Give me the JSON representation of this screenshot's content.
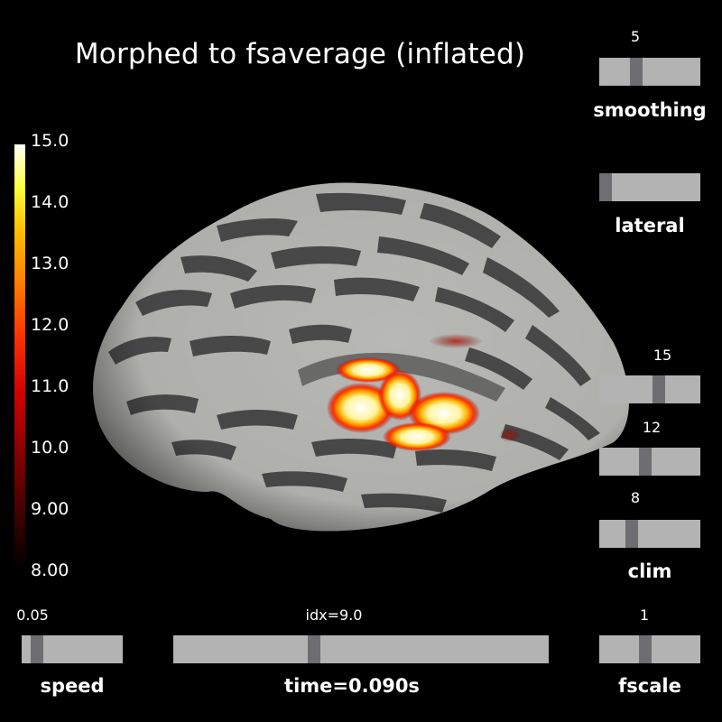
{
  "title": "Morphed to fsaverage (inflated)",
  "colorbar": {
    "ticks": [
      "15.0",
      "14.0",
      "13.0",
      "12.0",
      "11.0",
      "10.0",
      "9.00",
      "8.00"
    ],
    "min": 8.0,
    "max": 15.0
  },
  "sliders": {
    "smoothing": {
      "label": "smoothing",
      "value": "5",
      "fraction": 0.35
    },
    "lateral": {
      "label": "lateral",
      "fraction": 0.0
    },
    "clim_high": {
      "value": "15",
      "fraction": 0.6
    },
    "clim_mid": {
      "value": "12",
      "fraction": 0.45
    },
    "clim_low": {
      "value": "8",
      "fraction": 0.3,
      "label": "clim"
    },
    "speed": {
      "label": "speed",
      "value": "0.05",
      "fraction": 0.1
    },
    "time": {
      "label": "time=0.090s",
      "value": "idx=9.0",
      "fraction": 0.37
    },
    "fscale": {
      "label": "fscale",
      "value": "1",
      "fraction": 0.45
    }
  },
  "colors": {
    "background": "#000000",
    "slider_track": "#b3b3b3",
    "slider_knob": "#6e6e72",
    "sulcus": "#4a4a4a",
    "gyrus": "#b8b8b4"
  }
}
